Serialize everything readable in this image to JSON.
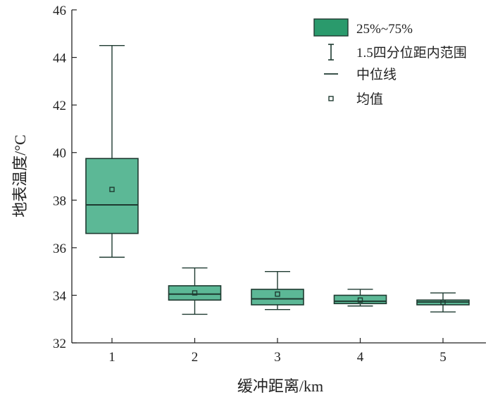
{
  "chart_data": {
    "type": "boxplot",
    "xlabel": "缓冲距离/km",
    "ylabel": "地表温度/°C",
    "ylim": [
      32,
      46
    ],
    "yticks": [
      32,
      34,
      36,
      38,
      40,
      42,
      44,
      46
    ],
    "categories": [
      "1",
      "2",
      "3",
      "4",
      "5"
    ],
    "boxes": [
      {
        "category": "1",
        "whisker_low": 35.6,
        "q1": 36.6,
        "median": 37.8,
        "q3": 39.75,
        "whisker_high": 44.5,
        "mean": 38.45
      },
      {
        "category": "2",
        "whisker_low": 33.2,
        "q1": 33.8,
        "median": 34.05,
        "q3": 34.4,
        "whisker_high": 35.15,
        "mean": 34.1
      },
      {
        "category": "3",
        "whisker_low": 33.4,
        "q1": 33.6,
        "median": 33.85,
        "q3": 34.25,
        "whisker_high": 35.0,
        "mean": 34.05
      },
      {
        "category": "4",
        "whisker_low": 33.55,
        "q1": 33.65,
        "median": 33.75,
        "q3": 34.0,
        "whisker_high": 34.25,
        "mean": 33.8
      },
      {
        "category": "5",
        "whisker_low": 33.3,
        "q1": 33.6,
        "median": 33.72,
        "q3": 33.8,
        "whisker_high": 34.1,
        "mean": 33.7
      }
    ],
    "legend": {
      "position": "top-right",
      "items": [
        {
          "key": "box",
          "label": "25%~75%"
        },
        {
          "key": "whisker",
          "label": "1.5四分位距内范围"
        },
        {
          "key": "median",
          "label": "中位线"
        },
        {
          "key": "mean",
          "label": "均值"
        }
      ]
    },
    "colors": {
      "box_fill": "#5cb896",
      "stroke": "#1e3a30",
      "legend_box_fill": "#2a9a6c"
    },
    "grid": false
  }
}
